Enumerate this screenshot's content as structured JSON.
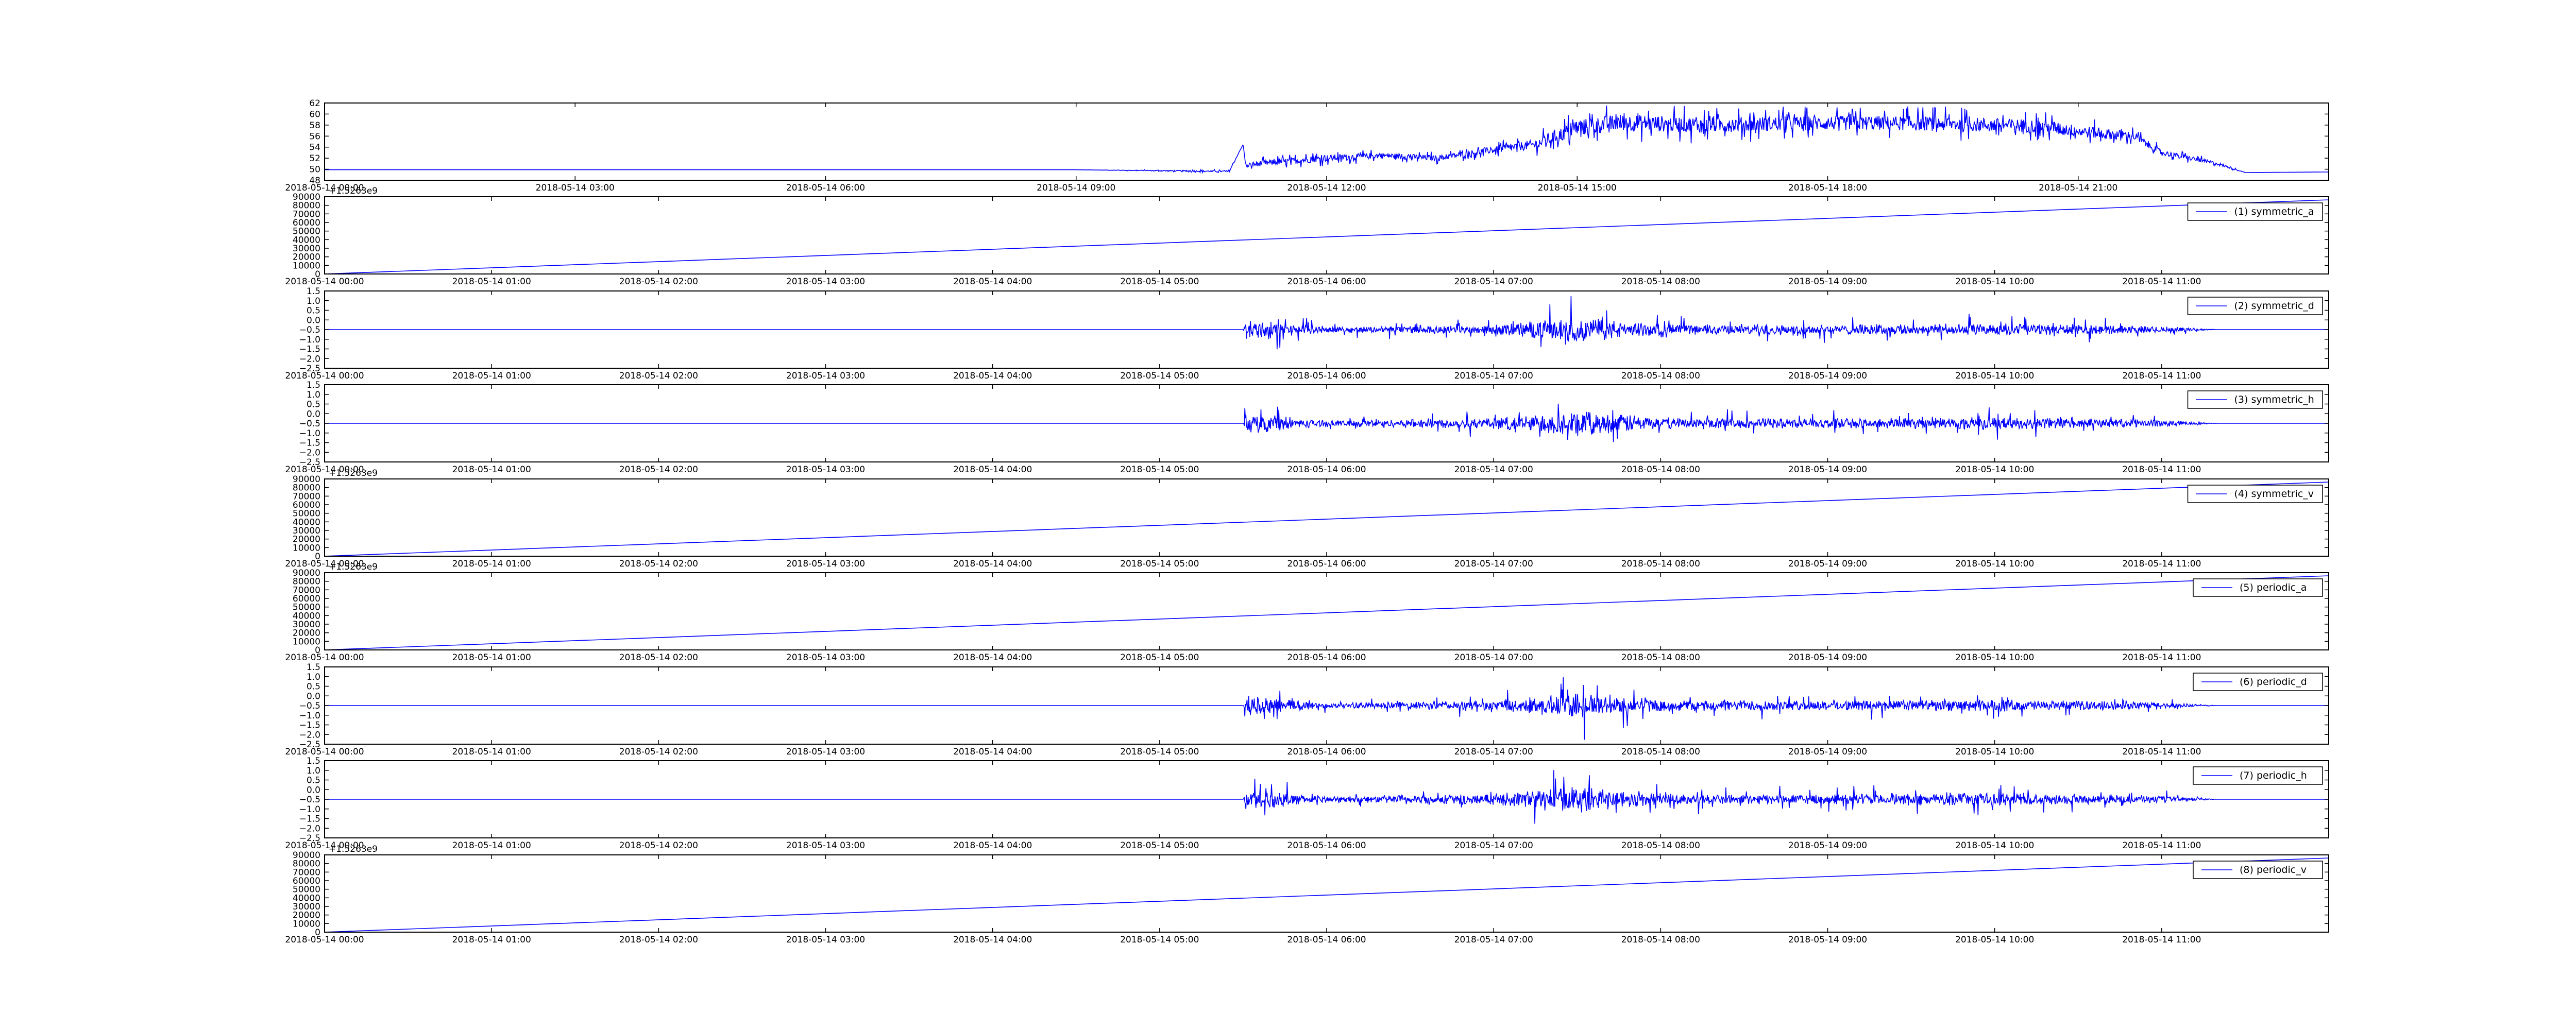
{
  "figure": {
    "panel_count": 9
  },
  "chart_data": [
    {
      "id": "raw",
      "type": "line",
      "x_type": "datetime",
      "x_range": [
        "2018-05-14 00:00",
        "2018-05-15 00:00"
      ],
      "x_ticks": [
        "2018-05-14 00:00",
        "2018-05-14 03:00",
        "2018-05-14 06:00",
        "2018-05-14 09:00",
        "2018-05-14 12:00",
        "2018-05-14 15:00",
        "2018-05-14 18:00",
        "2018-05-14 21:00"
      ],
      "ylim": [
        48,
        62
      ],
      "y_ticks": [
        "48",
        "50",
        "52",
        "54",
        "56",
        "58",
        "60",
        "62"
      ],
      "grid": false,
      "offset_label": "",
      "legend": null,
      "color": "#0000ff",
      "series": [
        {
          "name": "",
          "x": [
            "2018-05-14 00:00",
            "2018-05-14 09:00",
            "2018-05-14 10:50",
            "2018-05-14 11:00",
            "2018-05-14 11:02",
            "2018-05-14 11:10",
            "2018-05-14 12:00",
            "2018-05-14 12:40",
            "2018-05-14 13:20",
            "2018-05-14 14:00",
            "2018-05-14 14:30",
            "2018-05-14 15:00",
            "2018-05-14 15:30",
            "2018-05-14 16:30",
            "2018-05-14 17:30",
            "2018-05-14 18:30",
            "2018-05-14 19:30",
            "2018-05-14 20:30",
            "2018-05-14 21:15",
            "2018-05-14 21:40",
            "2018-05-14 22:00",
            "2018-05-14 22:40",
            "2018-05-14 23:00",
            "2018-05-15 00:00"
          ],
          "y": [
            49.9,
            49.9,
            49.6,
            54.5,
            50.5,
            51.0,
            52.0,
            52.5,
            52.0,
            53.5,
            54.5,
            57.5,
            58.5,
            58.0,
            58.3,
            58.4,
            58.2,
            57.8,
            56.5,
            56.0,
            53.0,
            51.0,
            49.4,
            49.5
          ],
          "noise": [
            0,
            0,
            0.3,
            0,
            0.6,
            1.0,
            1.2,
            1.0,
            1.0,
            1.2,
            1.8,
            3.0,
            3.0,
            2.8,
            2.6,
            2.6,
            2.6,
            2.4,
            2.0,
            1.6,
            1.0,
            0.6,
            0,
            0
          ]
        }
      ]
    },
    {
      "id": "symmetric_a",
      "type": "line",
      "x_type": "datetime",
      "x_range": [
        "2018-05-14 00:00",
        "2018-05-14 12:00"
      ],
      "x_ticks": [
        "2018-05-14 00:00",
        "2018-05-14 01:00",
        "2018-05-14 02:00",
        "2018-05-14 03:00",
        "2018-05-14 04:00",
        "2018-05-14 05:00",
        "2018-05-14 06:00",
        "2018-05-14 07:00",
        "2018-05-14 08:00",
        "2018-05-14 09:00",
        "2018-05-14 10:00",
        "2018-05-14 11:00"
      ],
      "ylim": [
        0,
        90000
      ],
      "y_ticks": [
        "0",
        "10000",
        "20000",
        "30000",
        "40000",
        "50000",
        "60000",
        "70000",
        "80000",
        "90000"
      ],
      "grid": false,
      "offset_label": "+1.5263e9",
      "legend": "upper right",
      "color": "#0000ff",
      "series": [
        {
          "name": "(1) symmetric_a",
          "x": [
            "2018-05-14 00:00",
            "2018-05-14 12:00"
          ],
          "y": [
            0,
            86400
          ]
        }
      ]
    },
    {
      "id": "symmetric_d",
      "type": "line",
      "x_type": "datetime",
      "x_range": [
        "2018-05-14 00:00",
        "2018-05-14 12:00"
      ],
      "x_ticks": [
        "2018-05-14 00:00",
        "2018-05-14 01:00",
        "2018-05-14 02:00",
        "2018-05-14 03:00",
        "2018-05-14 04:00",
        "2018-05-14 05:00",
        "2018-05-14 06:00",
        "2018-05-14 07:00",
        "2018-05-14 08:00",
        "2018-05-14 09:00",
        "2018-05-14 10:00",
        "2018-05-14 11:00"
      ],
      "ylim": [
        -2.5,
        1.5
      ],
      "y_ticks": [
        "−2.5",
        "−2.0",
        "−1.5",
        "−1.0",
        "−0.5",
        "0.0",
        "0.5",
        "1.0",
        "1.5"
      ],
      "grid": false,
      "offset_label": "",
      "legend": "upper right",
      "color": "#0000ff",
      "series": [
        {
          "name": "(2) symmetric_d",
          "baseline": -0.5,
          "x": [
            "2018-05-14 00:00",
            "2018-05-14 05:30",
            "2018-05-14 05:31",
            "2018-05-14 06:00",
            "2018-05-14 07:00",
            "2018-05-14 07:30",
            "2018-05-14 08:00",
            "2018-05-14 09:00",
            "2018-05-14 10:00",
            "2018-05-14 11:00",
            "2018-05-14 11:20",
            "2018-05-14 12:00"
          ],
          "amplitude": [
            0,
            0,
            1.5,
            0.4,
            0.7,
            1.9,
            0.8,
            0.7,
            0.9,
            0.5,
            0,
            0
          ]
        }
      ]
    },
    {
      "id": "symmetric_h",
      "type": "line",
      "x_type": "datetime",
      "x_range": [
        "2018-05-14 00:00",
        "2018-05-14 12:00"
      ],
      "x_ticks": [
        "2018-05-14 00:00",
        "2018-05-14 01:00",
        "2018-05-14 02:00",
        "2018-05-14 03:00",
        "2018-05-14 04:00",
        "2018-05-14 05:00",
        "2018-05-14 06:00",
        "2018-05-14 07:00",
        "2018-05-14 08:00",
        "2018-05-14 09:00",
        "2018-05-14 10:00",
        "2018-05-14 11:00"
      ],
      "ylim": [
        -2.5,
        1.5
      ],
      "y_ticks": [
        "−2.5",
        "−2.0",
        "−1.5",
        "−1.0",
        "−0.5",
        "0.0",
        "0.5",
        "1.0",
        "1.5"
      ],
      "grid": false,
      "offset_label": "",
      "legend": "upper right",
      "color": "#0000ff",
      "series": [
        {
          "name": "(3) symmetric_h",
          "baseline": -0.5,
          "x": [
            "2018-05-14 00:00",
            "2018-05-14 05:30",
            "2018-05-14 05:31",
            "2018-05-14 06:00",
            "2018-05-14 07:00",
            "2018-05-14 07:30",
            "2018-05-14 08:00",
            "2018-05-14 09:00",
            "2018-05-14 10:00",
            "2018-05-14 11:00",
            "2018-05-14 11:20",
            "2018-05-14 12:00"
          ],
          "amplitude": [
            0,
            0,
            1.6,
            0.4,
            0.8,
            1.9,
            0.8,
            0.7,
            0.9,
            0.5,
            0,
            0
          ]
        }
      ]
    },
    {
      "id": "symmetric_v",
      "type": "line",
      "x_type": "datetime",
      "x_range": [
        "2018-05-14 00:00",
        "2018-05-14 12:00"
      ],
      "x_ticks": [
        "2018-05-14 00:00",
        "2018-05-14 01:00",
        "2018-05-14 02:00",
        "2018-05-14 03:00",
        "2018-05-14 04:00",
        "2018-05-14 05:00",
        "2018-05-14 06:00",
        "2018-05-14 07:00",
        "2018-05-14 08:00",
        "2018-05-14 09:00",
        "2018-05-14 10:00",
        "2018-05-14 11:00"
      ],
      "ylim": [
        0,
        90000
      ],
      "y_ticks": [
        "0",
        "10000",
        "20000",
        "30000",
        "40000",
        "50000",
        "60000",
        "70000",
        "80000",
        "90000"
      ],
      "grid": false,
      "offset_label": "+1.5263e9",
      "legend": "upper right",
      "color": "#0000ff",
      "series": [
        {
          "name": "(4) symmetric_v",
          "x": [
            "2018-05-14 00:00",
            "2018-05-14 12:00"
          ],
          "y": [
            0,
            86400
          ]
        }
      ]
    },
    {
      "id": "periodic_a",
      "type": "line",
      "x_type": "datetime",
      "x_range": [
        "2018-05-14 00:00",
        "2018-05-14 12:00"
      ],
      "x_ticks": [
        "2018-05-14 00:00",
        "2018-05-14 01:00",
        "2018-05-14 02:00",
        "2018-05-14 03:00",
        "2018-05-14 04:00",
        "2018-05-14 05:00",
        "2018-05-14 06:00",
        "2018-05-14 07:00",
        "2018-05-14 08:00",
        "2018-05-14 09:00",
        "2018-05-14 10:00",
        "2018-05-14 11:00"
      ],
      "ylim": [
        0,
        90000
      ],
      "y_ticks": [
        "0",
        "10000",
        "20000",
        "30000",
        "40000",
        "50000",
        "60000",
        "70000",
        "80000",
        "90000"
      ],
      "grid": false,
      "offset_label": "+1.5263e9",
      "legend": "upper right",
      "color": "#0000ff",
      "series": [
        {
          "name": "(5) periodic_a",
          "x": [
            "2018-05-14 00:00",
            "2018-05-14 12:00"
          ],
          "y": [
            0,
            86400
          ]
        }
      ]
    },
    {
      "id": "periodic_d",
      "type": "line",
      "x_type": "datetime",
      "x_range": [
        "2018-05-14 00:00",
        "2018-05-14 12:00"
      ],
      "x_ticks": [
        "2018-05-14 00:00",
        "2018-05-14 01:00",
        "2018-05-14 02:00",
        "2018-05-14 03:00",
        "2018-05-14 04:00",
        "2018-05-14 05:00",
        "2018-05-14 06:00",
        "2018-05-14 07:00",
        "2018-05-14 08:00",
        "2018-05-14 09:00",
        "2018-05-14 10:00",
        "2018-05-14 11:00"
      ],
      "ylim": [
        -2.5,
        1.5
      ],
      "y_ticks": [
        "−2.5",
        "−2.0",
        "−1.5",
        "−1.0",
        "−0.5",
        "0.0",
        "0.5",
        "1.0",
        "1.5"
      ],
      "grid": false,
      "offset_label": "",
      "legend": "upper right",
      "color": "#0000ff",
      "series": [
        {
          "name": "(6) periodic_d",
          "baseline": -0.5,
          "x": [
            "2018-05-14 00:00",
            "2018-05-14 05:30",
            "2018-05-14 05:31",
            "2018-05-14 06:00",
            "2018-05-14 07:00",
            "2018-05-14 07:30",
            "2018-05-14 08:00",
            "2018-05-14 09:00",
            "2018-05-14 10:00",
            "2018-05-14 11:00",
            "2018-05-14 11:20",
            "2018-05-14 12:00"
          ],
          "amplitude": [
            0,
            0,
            1.5,
            0.4,
            0.7,
            1.9,
            0.8,
            0.7,
            0.9,
            0.5,
            0,
            0
          ]
        }
      ]
    },
    {
      "id": "periodic_h",
      "type": "line",
      "x_type": "datetime",
      "x_range": [
        "2018-05-14 00:00",
        "2018-05-14 12:00"
      ],
      "x_ticks": [
        "2018-05-14 00:00",
        "2018-05-14 01:00",
        "2018-05-14 02:00",
        "2018-05-14 03:00",
        "2018-05-14 04:00",
        "2018-05-14 05:00",
        "2018-05-14 06:00",
        "2018-05-14 07:00",
        "2018-05-14 08:00",
        "2018-05-14 09:00",
        "2018-05-14 10:00",
        "2018-05-14 11:00"
      ],
      "ylim": [
        -2.5,
        1.5
      ],
      "y_ticks": [
        "−2.5",
        "−2.0",
        "−1.5",
        "−1.0",
        "−0.5",
        "0.0",
        "0.5",
        "1.0",
        "1.5"
      ],
      "grid": false,
      "offset_label": "",
      "legend": "upper right",
      "color": "#0000ff",
      "series": [
        {
          "name": "(7) periodic_h",
          "baseline": -0.5,
          "x": [
            "2018-05-14 00:00",
            "2018-05-14 05:30",
            "2018-05-14 05:31",
            "2018-05-14 06:00",
            "2018-05-14 07:00",
            "2018-05-14 07:30",
            "2018-05-14 08:00",
            "2018-05-14 09:00",
            "2018-05-14 10:00",
            "2018-05-14 11:00",
            "2018-05-14 11:20",
            "2018-05-14 12:00"
          ],
          "amplitude": [
            0,
            0,
            1.6,
            0.4,
            0.8,
            1.9,
            0.8,
            0.7,
            0.9,
            0.5,
            0,
            0
          ]
        }
      ]
    },
    {
      "id": "periodic_v",
      "type": "line",
      "x_type": "datetime",
      "x_range": [
        "2018-05-14 00:00",
        "2018-05-14 12:00"
      ],
      "x_ticks": [
        "2018-05-14 00:00",
        "2018-05-14 01:00",
        "2018-05-14 02:00",
        "2018-05-14 03:00",
        "2018-05-14 04:00",
        "2018-05-14 05:00",
        "2018-05-14 06:00",
        "2018-05-14 07:00",
        "2018-05-14 08:00",
        "2018-05-14 09:00",
        "2018-05-14 10:00",
        "2018-05-14 11:00"
      ],
      "ylim": [
        0,
        90000
      ],
      "y_ticks": [
        "0",
        "10000",
        "20000",
        "30000",
        "40000",
        "50000",
        "60000",
        "70000",
        "80000",
        "90000"
      ],
      "grid": false,
      "offset_label": "+1.5263e9",
      "legend": "upper right",
      "color": "#0000ff",
      "series": [
        {
          "name": "(8) periodic_v",
          "x": [
            "2018-05-14 00:00",
            "2018-05-14 12:00"
          ],
          "y": [
            0,
            86400
          ]
        }
      ]
    }
  ]
}
